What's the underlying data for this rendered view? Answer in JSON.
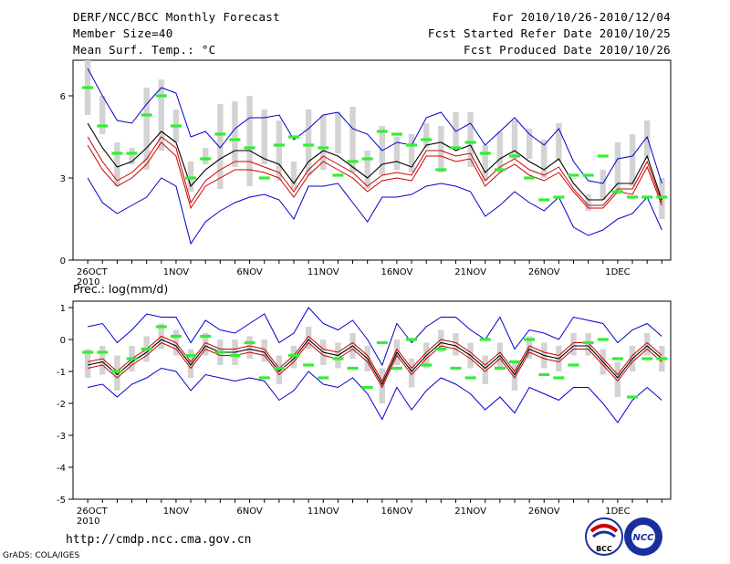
{
  "header": {
    "title": "DERF/NCC/BCC Monthly Forecast",
    "member": "Member Size=40",
    "var1": "Mean Surf. Temp.: °C",
    "period": "For 2010/10/26-2010/12/04",
    "started": "Fcst Started Refer Date 2010/10/25",
    "produced": "Fcst Produced Date 2010/10/26"
  },
  "footer": {
    "url": "http://cmdp.ncc.cma.gov.cn",
    "grads": "GrADS: COLA/IGES"
  },
  "logos": {
    "bcc": "BCC",
    "ncc": "NCC"
  },
  "colors": {
    "max_min": "#0000cc",
    "spread": "#cc0000",
    "mean": "#000000",
    "box": "#d3d3d3",
    "marker": "#33ee33"
  },
  "chart_data": [
    {
      "type": "line",
      "title": "Mean Surf. Temp.: °C",
      "xlabel": "",
      "ylabel": "",
      "ylim": [
        0,
        7.3
      ],
      "yticks": [
        0,
        3,
        6
      ],
      "ytick_labels": [
        "0",
        "3",
        "6"
      ],
      "x_start_label": [
        "26OCT",
        "2010"
      ],
      "xtick_labels": [
        "1NOV",
        "6NOV",
        "11NOV",
        "16NOV",
        "21NOV",
        "26NOV",
        "1DEC"
      ],
      "days": 40,
      "series": [
        {
          "name": "max",
          "values": [
            7.0,
            6.0,
            5.1,
            5.0,
            5.7,
            6.3,
            6.1,
            4.5,
            4.7,
            4.1,
            4.8,
            5.2,
            5.2,
            5.3,
            4.4,
            4.8,
            5.3,
            5.4,
            4.8,
            4.6,
            4.0,
            4.3,
            4.2,
            5.2,
            5.4,
            4.7,
            5.0,
            4.2,
            4.7,
            5.2,
            4.6,
            4.2,
            4.8,
            3.6,
            2.9,
            2.8,
            3.7,
            3.8,
            4.5,
            2.8
          ]
        },
        {
          "name": "upper",
          "values": [
            4.2,
            3.3,
            2.7,
            3.0,
            3.5,
            4.3,
            3.8,
            1.9,
            2.7,
            3.0,
            3.3,
            3.3,
            3.2,
            3.0,
            2.3,
            3.1,
            3.6,
            3.3,
            3.0,
            2.5,
            2.9,
            3.0,
            2.9,
            3.8,
            3.8,
            3.6,
            3.7,
            2.7,
            3.2,
            3.5,
            3.1,
            2.9,
            3.2,
            2.5,
            1.9,
            1.9,
            2.5,
            2.4,
            3.4,
            2.0
          ]
        },
        {
          "name": "mean",
          "values": [
            5.0,
            4.1,
            3.4,
            3.6,
            4.1,
            4.7,
            4.3,
            2.7,
            3.3,
            3.7,
            4.0,
            4.0,
            3.7,
            3.5,
            2.8,
            3.6,
            4.0,
            3.8,
            3.4,
            3.0,
            3.5,
            3.6,
            3.4,
            4.2,
            4.3,
            4.0,
            4.2,
            3.2,
            3.7,
            4.0,
            3.6,
            3.3,
            3.7,
            2.8,
            2.2,
            2.2,
            2.8,
            2.8,
            3.8,
            2.2
          ]
        },
        {
          "name": "lower",
          "values": [
            4.5,
            3.6,
            2.9,
            3.2,
            3.7,
            4.5,
            4.1,
            2.1,
            2.9,
            3.3,
            3.6,
            3.6,
            3.4,
            3.2,
            2.5,
            3.3,
            3.8,
            3.5,
            3.2,
            2.7,
            3.1,
            3.2,
            3.1,
            4.0,
            4.0,
            3.8,
            3.9,
            2.9,
            3.4,
            3.7,
            3.3,
            3.1,
            3.4,
            2.6,
            2.0,
            2.0,
            2.6,
            2.6,
            3.6,
            2.1
          ]
        },
        {
          "name": "min",
          "values": [
            3.0,
            2.1,
            1.7,
            2.0,
            2.3,
            3.0,
            2.7,
            0.6,
            1.4,
            1.8,
            2.1,
            2.3,
            2.4,
            2.2,
            1.5,
            2.7,
            2.7,
            2.8,
            2.1,
            1.4,
            2.3,
            2.3,
            2.4,
            2.7,
            2.8,
            2.7,
            2.5,
            1.6,
            2.0,
            2.5,
            2.1,
            1.8,
            2.3,
            1.2,
            0.9,
            1.1,
            1.5,
            1.7,
            2.3,
            1.1
          ]
        }
      ],
      "box_low": [
        5.3,
        4.6,
        2.7,
        3.5,
        3.3,
        4.0,
        4.3,
        2.5,
        3.5,
        2.6,
        3.4,
        2.7,
        3.5,
        2.9,
        2.6,
        3.1,
        3.3,
        3.9,
        3.2,
        2.6,
        3.1,
        3.3,
        3.2,
        4.1,
        3.2,
        4.1,
        3.4,
        2.9,
        3.2,
        3.7,
        3.7,
        3.0,
        3.6,
        3.1,
        1.8,
        2.2,
        2.4,
        2.7,
        3.7,
        1.5
      ],
      "box_high": [
        7.3,
        6.0,
        4.3,
        4.1,
        6.3,
        6.6,
        5.5,
        3.6,
        4.1,
        5.7,
        5.8,
        6.0,
        5.5,
        5.1,
        3.6,
        5.5,
        5.3,
        5.4,
        5.6,
        4.0,
        4.9,
        4.5,
        4.6,
        5.0,
        4.9,
        5.4,
        5.4,
        4.2,
        4.7,
        5.1,
        4.8,
        4.4,
        5.0,
        3.0,
        2.4,
        3.3,
        4.3,
        4.6,
        5.1,
        3.0
      ],
      "marker": [
        6.3,
        4.9,
        3.9,
        3.9,
        5.3,
        6.0,
        4.9,
        3.0,
        3.7,
        4.6,
        4.4,
        4.1,
        3.0,
        4.2,
        4.5,
        4.2,
        4.1,
        3.1,
        3.6,
        3.7,
        4.7,
        4.6,
        4.2,
        4.4,
        3.3,
        4.1,
        4.3,
        3.9,
        3.3,
        3.8,
        3.0,
        2.2,
        2.3,
        3.1,
        3.1,
        3.8,
        2.5,
        2.3,
        2.3,
        2.3
      ]
    },
    {
      "type": "line",
      "title": "Prec.: log(mm/d)",
      "xlabel": "",
      "ylabel": "",
      "ylim": [
        -5,
        1.2
      ],
      "yticks": [
        -5,
        -4,
        -3,
        -2,
        -1,
        0,
        1
      ],
      "ytick_labels": [
        "-5",
        "-4",
        "-3",
        "-2",
        "-1",
        "0",
        "1"
      ],
      "x_start_label": [
        "26OCT",
        "2010"
      ],
      "xtick_labels": [
        "1NOV",
        "6NOV",
        "11NOV",
        "16NOV",
        "21NOV",
        "26NOV",
        "1DEC"
      ],
      "days": 40,
      "series": [
        {
          "name": "max",
          "values": [
            0.4,
            0.5,
            -0.1,
            0.3,
            0.8,
            0.7,
            0.7,
            -0.1,
            0.6,
            0.3,
            0.2,
            0.5,
            0.8,
            -0.1,
            0.2,
            1.0,
            0.5,
            0.3,
            0.6,
            0.0,
            -0.8,
            0.5,
            -0.1,
            0.4,
            0.7,
            0.7,
            0.3,
            0.0,
            0.7,
            -0.3,
            0.3,
            0.2,
            0.0,
            0.7,
            0.6,
            0.5,
            -0.1,
            0.3,
            0.5,
            0.1
          ]
        },
        {
          "name": "upper",
          "values": [
            -0.7,
            -0.6,
            -1.0,
            -0.6,
            -0.3,
            0.1,
            -0.1,
            -0.7,
            -0.1,
            -0.3,
            -0.3,
            -0.2,
            -0.3,
            -0.9,
            -0.5,
            0.1,
            -0.3,
            -0.4,
            -0.1,
            -0.5,
            -1.3,
            -0.3,
            -0.9,
            -0.4,
            0.0,
            -0.1,
            -0.4,
            -0.8,
            -0.4,
            -1.0,
            -0.2,
            -0.4,
            -0.5,
            -0.1,
            -0.1,
            -0.6,
            -1.1,
            -0.5,
            -0.1,
            -0.5
          ]
        },
        {
          "name": "mean",
          "values": [
            -0.8,
            -0.7,
            -1.1,
            -0.7,
            -0.4,
            0.0,
            -0.2,
            -0.8,
            -0.2,
            -0.4,
            -0.4,
            -0.3,
            -0.4,
            -1.0,
            -0.6,
            0.0,
            -0.4,
            -0.5,
            -0.2,
            -0.6,
            -1.4,
            -0.4,
            -1.0,
            -0.5,
            -0.1,
            -0.2,
            -0.5,
            -0.9,
            -0.5,
            -1.1,
            -0.3,
            -0.5,
            -0.6,
            -0.2,
            -0.2,
            -0.7,
            -1.2,
            -0.6,
            -0.2,
            -0.6
          ]
        },
        {
          "name": "lower",
          "values": [
            -0.9,
            -0.8,
            -1.2,
            -0.8,
            -0.5,
            -0.1,
            -0.3,
            -0.9,
            -0.3,
            -0.5,
            -0.5,
            -0.4,
            -0.5,
            -1.1,
            -0.7,
            -0.1,
            -0.5,
            -0.6,
            -0.3,
            -0.7,
            -1.5,
            -0.5,
            -1.1,
            -0.6,
            -0.2,
            -0.3,
            -0.6,
            -1.0,
            -0.6,
            -1.2,
            -0.4,
            -0.6,
            -0.7,
            -0.3,
            -0.3,
            -0.8,
            -1.3,
            -0.7,
            -0.3,
            -0.7
          ]
        },
        {
          "name": "min",
          "values": [
            -1.5,
            -1.4,
            -1.8,
            -1.4,
            -1.2,
            -0.9,
            -1.0,
            -1.6,
            -1.1,
            -1.2,
            -1.3,
            -1.2,
            -1.3,
            -1.9,
            -1.6,
            -1.0,
            -1.4,
            -1.5,
            -1.2,
            -1.7,
            -2.5,
            -1.5,
            -2.2,
            -1.6,
            -1.2,
            -1.4,
            -1.7,
            -2.2,
            -1.8,
            -2.3,
            -1.5,
            -1.7,
            -1.9,
            -1.5,
            -1.5,
            -2.0,
            -2.6,
            -1.9,
            -1.5,
            -1.9
          ]
        }
      ],
      "box_low": [
        -1.2,
        -1.1,
        -1.6,
        -1.0,
        -0.7,
        -0.3,
        -0.5,
        -1.2,
        -0.5,
        -0.8,
        -0.8,
        -0.6,
        -0.7,
        -1.4,
        -0.9,
        -0.3,
        -0.8,
        -0.9,
        -0.6,
        -1.0,
        -2.0,
        -0.8,
        -1.5,
        -0.9,
        -0.4,
        -0.5,
        -0.9,
        -1.4,
        -0.9,
        -1.6,
        -0.6,
        -0.9,
        -1.0,
        -0.5,
        -0.5,
        -1.1,
        -1.8,
        -1.0,
        -0.5,
        -1.0
      ],
      "box_high": [
        -0.3,
        -0.2,
        -0.5,
        -0.2,
        0.1,
        0.5,
        0.3,
        -0.3,
        0.2,
        0.0,
        0.0,
        0.1,
        0.0,
        -0.5,
        -0.2,
        0.4,
        0.0,
        -0.1,
        0.2,
        -0.2,
        -0.9,
        0.0,
        -0.6,
        -0.1,
        0.3,
        0.2,
        -0.1,
        -0.5,
        -0.1,
        -0.7,
        0.1,
        -0.1,
        -0.2,
        0.2,
        0.2,
        -0.3,
        -0.7,
        -0.2,
        0.2,
        -0.2
      ],
      "marker": [
        -0.4,
        -0.4,
        -1.0,
        -0.6,
        -0.3,
        0.4,
        0.1,
        -0.5,
        0.1,
        -0.4,
        -0.5,
        -0.1,
        -1.2,
        -0.9,
        -0.5,
        -0.8,
        -1.2,
        -0.6,
        -0.9,
        -1.5,
        -0.1,
        -0.9,
        0.0,
        -0.8,
        -0.3,
        -0.9,
        -1.2,
        0.0,
        -0.9,
        -0.7,
        0.0,
        -1.1,
        -1.2,
        -0.8,
        -0.1,
        0.0,
        -0.6,
        -1.8,
        -0.6,
        -0.6
      ]
    }
  ]
}
